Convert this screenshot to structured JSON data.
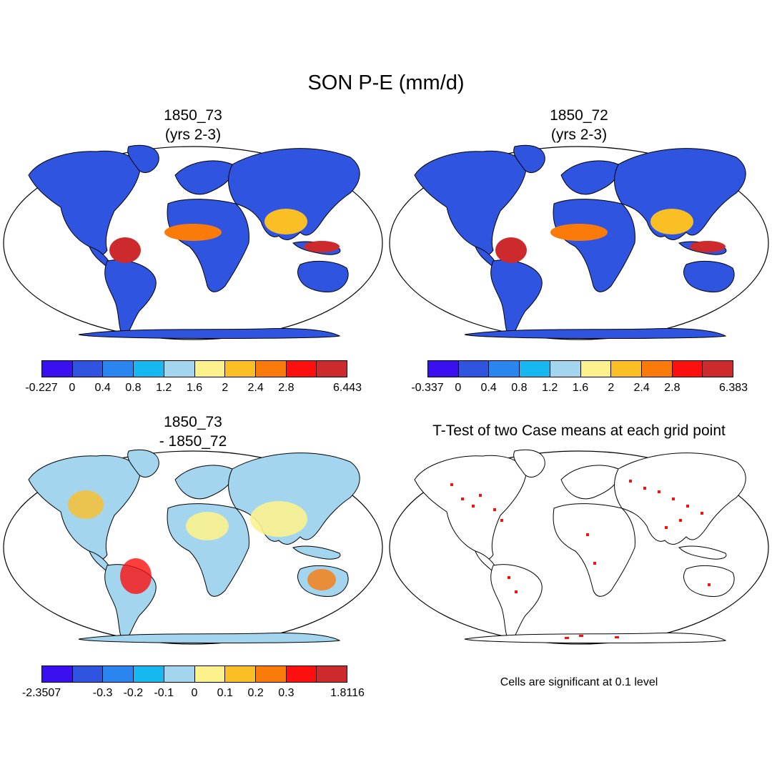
{
  "title": "SON P-E (mm/d)",
  "panels": [
    {
      "title_lines": [
        "1850_73",
        "(yrs 2-3)"
      ]
    },
    {
      "title_lines": [
        "1850_72",
        "(yrs 2-3)"
      ]
    },
    {
      "title_lines": [
        "1850_73",
        "- 1850_72"
      ]
    },
    {
      "title_lines": [
        "T-Test of two Case means at each grid point"
      ]
    }
  ],
  "colorbars": {
    "cb1": {
      "colors": [
        "#3a10f0",
        "#2f55e0",
        "#2a86ee",
        "#17b8f0",
        "#a3d5ef",
        "#fbf28e",
        "#fbbf26",
        "#fb7b0a",
        "#fb0f0f",
        "#cd2a2d"
      ],
      "labels": [
        "-0.227",
        "0",
        "0.4",
        "0.8",
        "1.2",
        "1.6",
        "2",
        "2.4",
        "2.8",
        "6.443"
      ]
    },
    "cb2": {
      "colors": [
        "#3a10f0",
        "#2f55e0",
        "#2a86ee",
        "#17b8f0",
        "#a3d5ef",
        "#fbf28e",
        "#fbbf26",
        "#fb7b0a",
        "#fb0f0f",
        "#cd2a2d"
      ],
      "labels": [
        "-0.337",
        "0",
        "0.4",
        "0.8",
        "1.2",
        "1.6",
        "2",
        "2.4",
        "2.8",
        "6.383"
      ]
    },
    "cb3": {
      "colors": [
        "#3a10f0",
        "#2f55e0",
        "#2a86ee",
        "#17b8f0",
        "#a3d5ef",
        "#fbf28e",
        "#fbbf26",
        "#fb7b0a",
        "#fb0f0f",
        "#cd2a2d"
      ],
      "labels": [
        "-2.3507",
        "-0.3",
        "-0.2",
        "-0.1",
        "0",
        "0.1",
        "0.2",
        "0.3",
        "1.8116"
      ]
    }
  },
  "significance_note": "Cells are significant at 0.1 level"
}
